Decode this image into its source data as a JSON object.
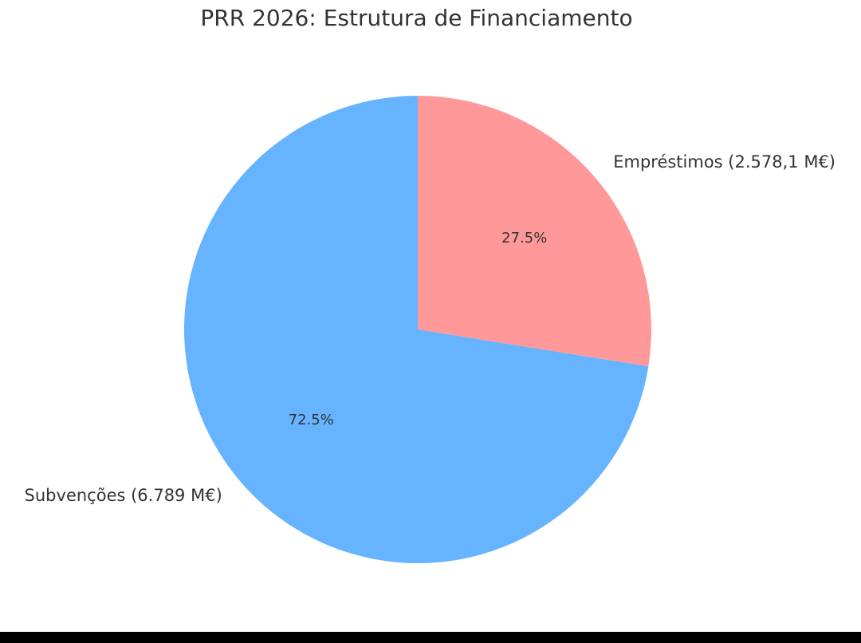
{
  "chart_data": {
    "type": "pie",
    "title": "PRR 2026: Estrutura de Financiamento",
    "slices": [
      {
        "label": "Empréstimos (2.578,1 M€)",
        "value": 2578.1,
        "percent_label": "27.5%",
        "color": "#ff9999"
      },
      {
        "label": "Subvenções (6.789 M€)",
        "value": 6789,
        "percent_label": "72.5%",
        "color": "#66b3ff"
      }
    ],
    "start_angle": "top, counter-clockwise for first slice (Empréstimos shown clockwise from top)",
    "legend": "none"
  }
}
